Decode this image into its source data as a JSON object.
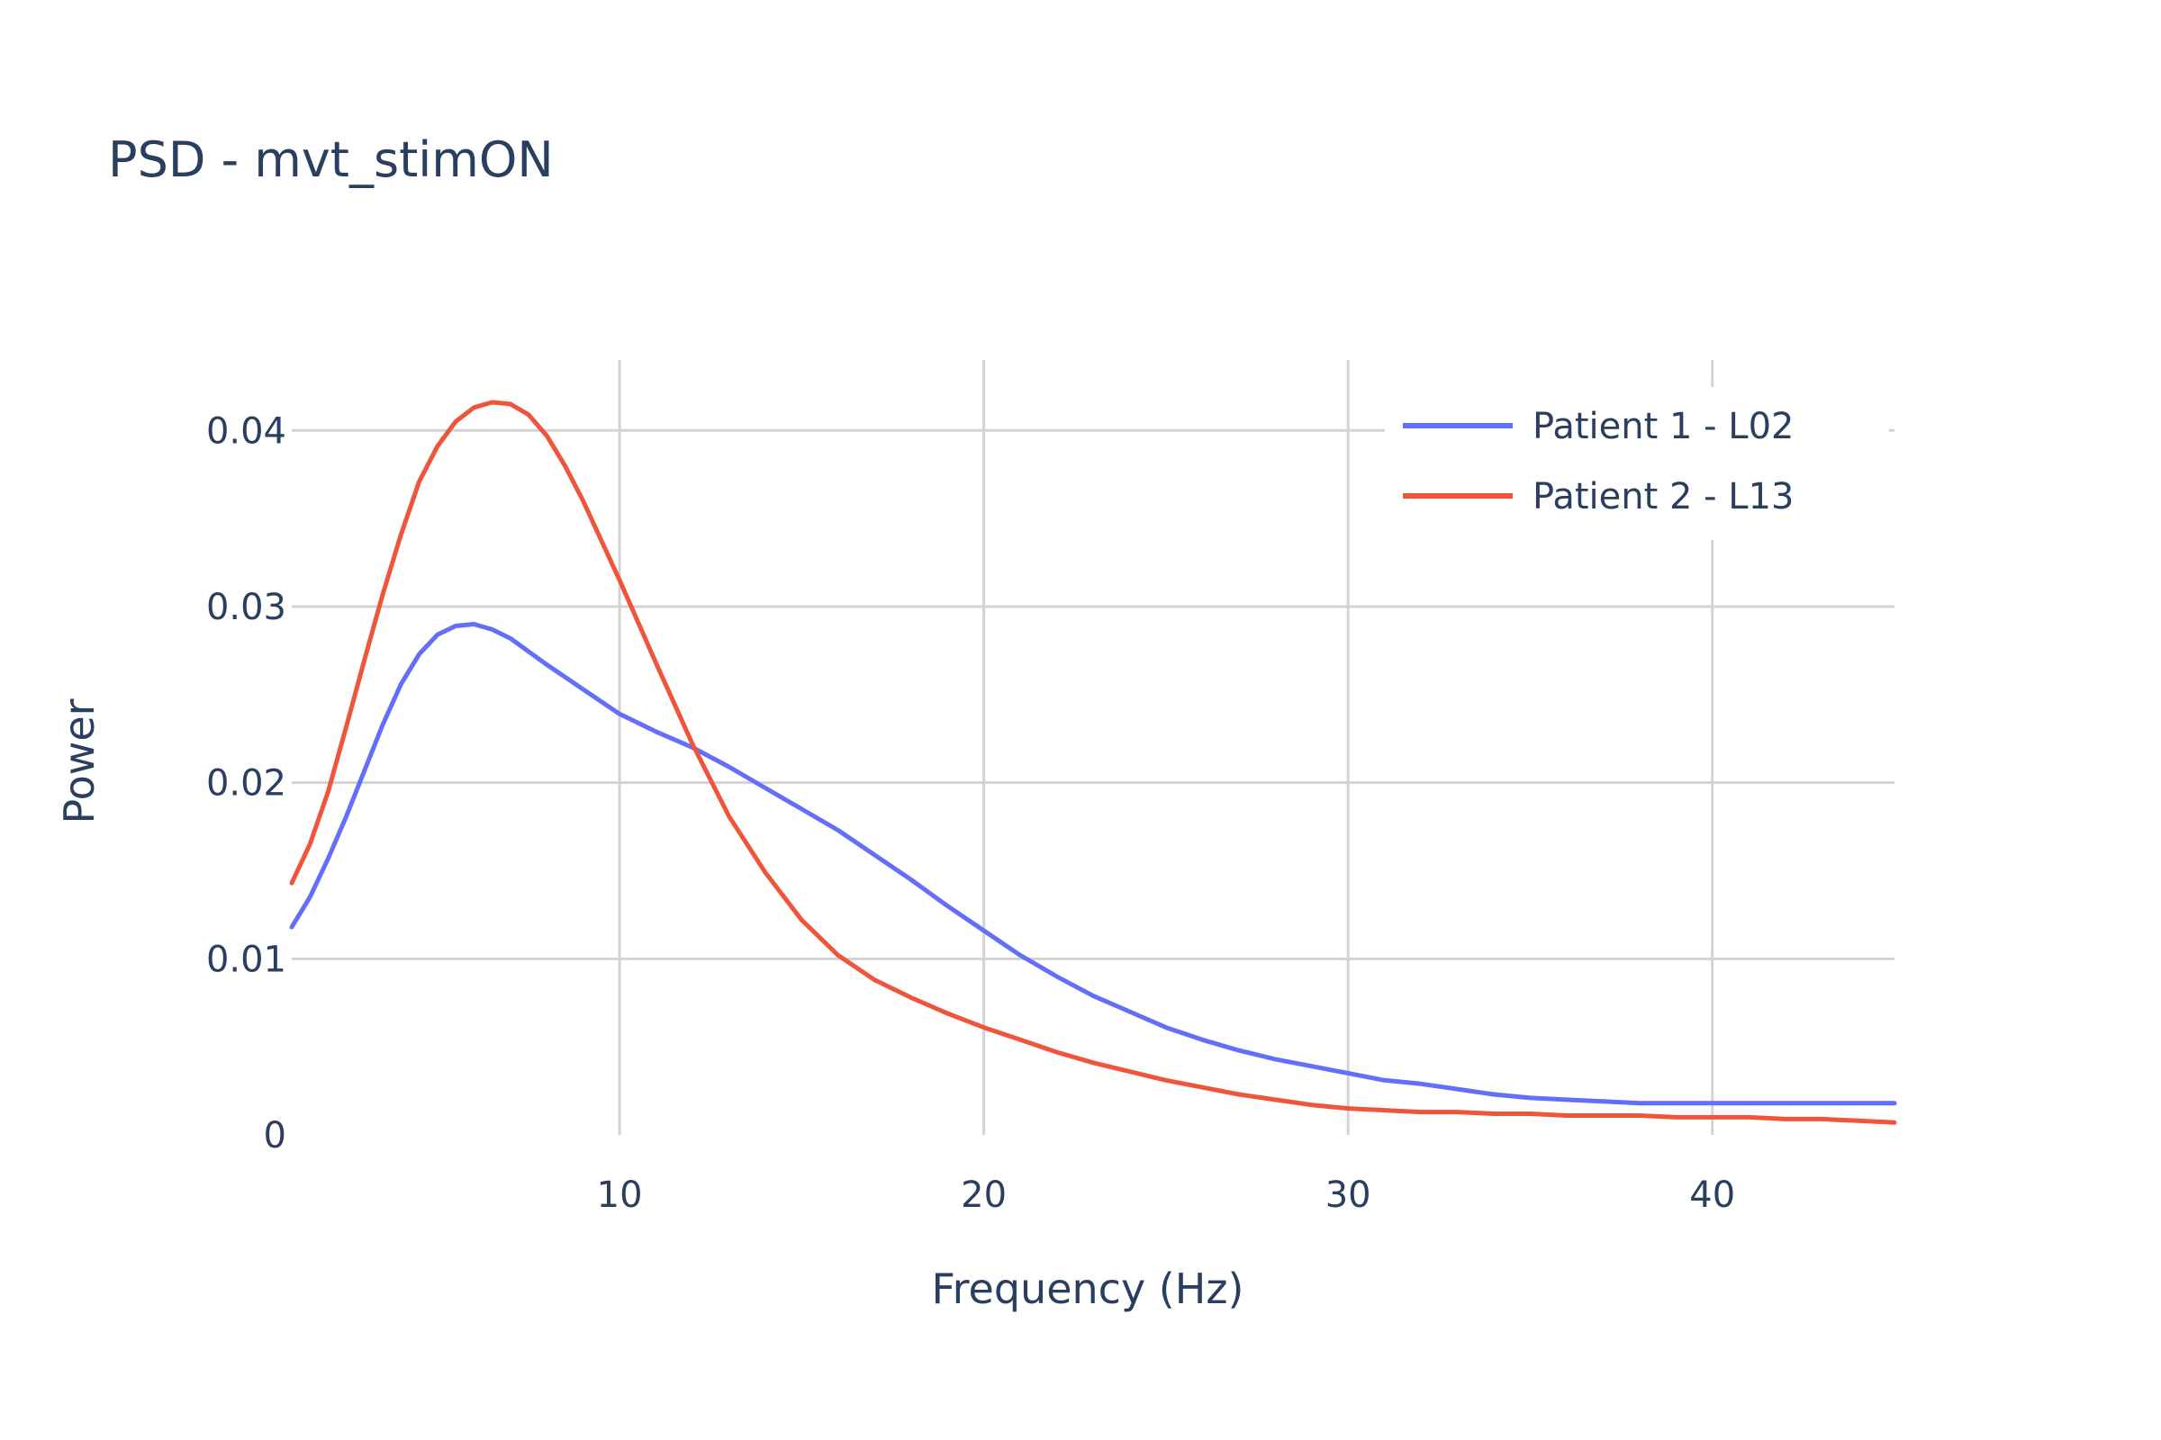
{
  "chart_data": {
    "type": "line",
    "title": "PSD - mvt_stimON",
    "xlabel": "Frequency (Hz)",
    "ylabel": "Power",
    "xlim": [
      1,
      45
    ],
    "ylim": [
      0,
      0.044
    ],
    "x_ticks": [
      10,
      20,
      30,
      40
    ],
    "y_ticks": [
      0,
      0.01,
      0.02,
      0.03,
      0.04
    ],
    "x_tick_labels": [
      "10",
      "20",
      "30",
      "40"
    ],
    "y_tick_labels": [
      "0",
      "0.01",
      "0.02",
      "0.03",
      "0.04"
    ],
    "grid": true,
    "legend_position": "top-right",
    "series": [
      {
        "name": "Patient 1 - L02",
        "color": "#636efa",
        "x": [
          1,
          1.5,
          2,
          2.5,
          3,
          3.5,
          4,
          4.5,
          5,
          5.5,
          6,
          6.5,
          7,
          8,
          9,
          10,
          11,
          12,
          13,
          14,
          15,
          16,
          17,
          18,
          19,
          20,
          21,
          22,
          23,
          24,
          25,
          26,
          27,
          28,
          29,
          30,
          31,
          32,
          33,
          34,
          35,
          36,
          37,
          38,
          39,
          40,
          41,
          42,
          43,
          44,
          45
        ],
        "y": [
          0.0118,
          0.0135,
          0.0157,
          0.0181,
          0.0207,
          0.0233,
          0.0256,
          0.0273,
          0.0284,
          0.0289,
          0.029,
          0.0287,
          0.0282,
          0.0267,
          0.0253,
          0.0239,
          0.0229,
          0.022,
          0.0209,
          0.0197,
          0.0185,
          0.0173,
          0.0159,
          0.0145,
          0.013,
          0.0116,
          0.0102,
          0.009,
          0.0079,
          0.007,
          0.0061,
          0.0054,
          0.0048,
          0.0043,
          0.0039,
          0.0035,
          0.0031,
          0.0029,
          0.0026,
          0.0023,
          0.0021,
          0.002,
          0.0019,
          0.0018,
          0.0018,
          0.0018,
          0.0018,
          0.0018,
          0.0018,
          0.0018,
          0.0018
        ]
      },
      {
        "name": "Patient 2 - L13",
        "color": "#ef553b",
        "x": [
          1,
          1.5,
          2,
          2.5,
          3,
          3.5,
          4,
          4.5,
          5,
          5.5,
          6,
          6.5,
          7,
          7.5,
          8,
          8.5,
          9,
          10,
          11,
          12,
          13,
          14,
          15,
          16,
          17,
          18,
          19,
          20,
          21,
          22,
          23,
          24,
          25,
          26,
          27,
          28,
          29,
          30,
          31,
          32,
          33,
          34,
          35,
          36,
          37,
          38,
          39,
          40,
          41,
          42,
          43,
          44,
          45
        ],
        "y": [
          0.0143,
          0.0165,
          0.0195,
          0.0232,
          0.027,
          0.0307,
          0.0341,
          0.0371,
          0.0391,
          0.0405,
          0.0413,
          0.0416,
          0.0415,
          0.0409,
          0.0397,
          0.038,
          0.036,
          0.0315,
          0.0268,
          0.0222,
          0.0181,
          0.0149,
          0.0122,
          0.0102,
          0.0088,
          0.0078,
          0.0069,
          0.0061,
          0.0054,
          0.0047,
          0.0041,
          0.0036,
          0.0031,
          0.0027,
          0.0023,
          0.002,
          0.0017,
          0.0015,
          0.0014,
          0.0013,
          0.0013,
          0.0012,
          0.0012,
          0.0011,
          0.0011,
          0.0011,
          0.001,
          0.001,
          0.001,
          0.0009,
          0.0009,
          0.0008,
          0.0007
        ]
      }
    ]
  }
}
